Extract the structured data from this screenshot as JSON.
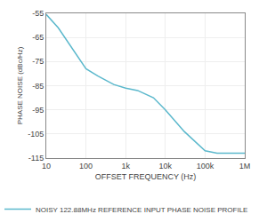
{
  "chart_data": {
    "type": "line",
    "xlabel": "OFFSET FREQUENCY (Hz)",
    "ylabel": "PHASE NOISE (dBc/Hz)",
    "log": "x",
    "grid": true,
    "legend": "bottom",
    "x": [
      10,
      20,
      100,
      200,
      500,
      1000,
      2000,
      5000,
      10000,
      30000,
      100000,
      200000,
      1000000
    ],
    "series": [
      {
        "name": "NOISY 122.88MHz REFERENCE INPUT PHASE NOISE PROFILE",
        "color": "#5BB8CC",
        "values": [
          -55.5,
          -61,
          -78,
          -81,
          -84.5,
          -86,
          -87,
          -90,
          -95,
          -104,
          -112,
          -113,
          -113
        ]
      }
    ],
    "xlim": [
      10,
      1000000
    ],
    "xticks": [
      10,
      100,
      {
        "value": 1000,
        "label": "1k"
      },
      {
        "value": 10000,
        "label": "10k"
      },
      {
        "value": 100000,
        "label": "100k"
      },
      {
        "value": 1000000,
        "label": "1M"
      }
    ],
    "ylim": [
      -115,
      -55
    ],
    "yticks": [
      -115,
      -105,
      -95,
      -85,
      -75,
      -65,
      -55
    ]
  }
}
